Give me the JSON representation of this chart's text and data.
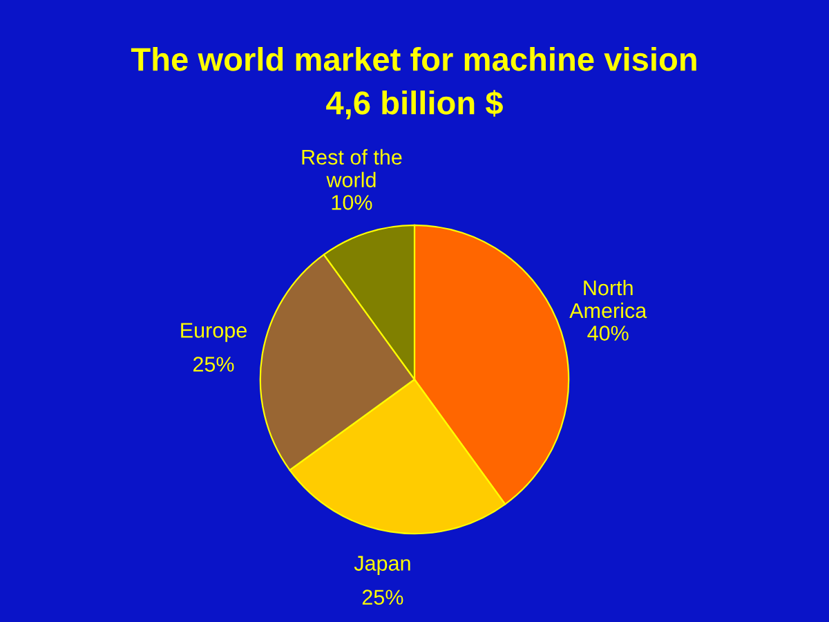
{
  "chart_data": {
    "type": "pie",
    "title": "The world market for machine vision",
    "subtitle": "4,6 billion $",
    "categories": [
      "North\nAmerica",
      "Japan",
      "Europe",
      "Rest of the\nworld"
    ],
    "values": [
      40,
      25,
      25,
      10
    ],
    "colors": [
      "#ff6600",
      "#ffcc00",
      "#996633",
      "#808000"
    ],
    "value_labels": [
      "40%",
      "25%",
      "25%",
      "10%"
    ],
    "legend": false
  }
}
